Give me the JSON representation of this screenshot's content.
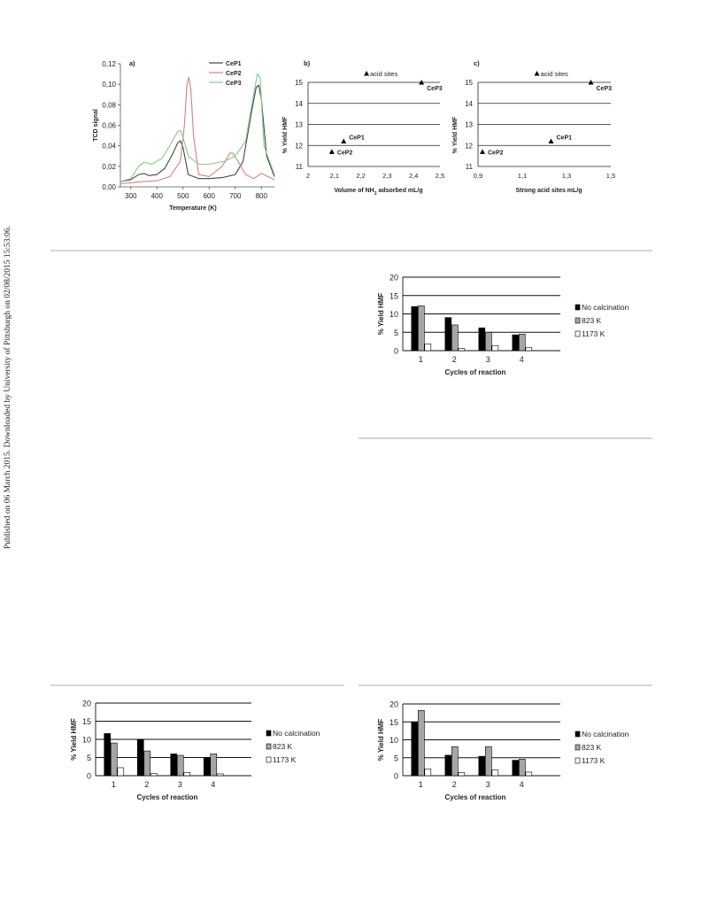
{
  "side_note": "Published on 06 March 2015. Downloaded by University of Pittsburgh on 02/08/2015 15:53:06.",
  "chart_data": [
    {
      "panel": "a)",
      "type": "line",
      "xlabel": "Temperature (K)",
      "ylabel": "TCD signal",
      "xlim": [
        260,
        850
      ],
      "ylim": [
        0,
        0.12
      ],
      "xticks": [
        "300",
        "400",
        "500",
        "600",
        "700",
        "800"
      ],
      "xtick_values": [
        300,
        400,
        500,
        600,
        700,
        800
      ],
      "yticks": [
        "0,00",
        "0,02",
        "0,04",
        "0,06",
        "0,08",
        "0,10",
        "0,12"
      ],
      "ytick_values": [
        0,
        0.02,
        0.04,
        0.06,
        0.08,
        0.1,
        0.12
      ],
      "legend": [
        "CeP1",
        "CeP2",
        "CeP3"
      ],
      "colors": [
        "#444444",
        "#d98080",
        "#86c986"
      ],
      "series": [
        {
          "name": "CeP1",
          "x": [
            260,
            300,
            330,
            350,
            370,
            400,
            430,
            460,
            480,
            490,
            500,
            520,
            560,
            600,
            650,
            700,
            730,
            760,
            780,
            790,
            800,
            820,
            850
          ],
          "y": [
            0.005,
            0.007,
            0.012,
            0.013,
            0.011,
            0.012,
            0.018,
            0.032,
            0.043,
            0.045,
            0.038,
            0.012,
            0.008,
            0.008,
            0.009,
            0.012,
            0.025,
            0.07,
            0.097,
            0.099,
            0.085,
            0.03,
            0.01
          ]
        },
        {
          "name": "CeP2",
          "x": [
            260,
            300,
            340,
            400,
            450,
            490,
            505,
            515,
            522,
            530,
            540,
            560,
            600,
            650,
            680,
            690,
            710,
            740,
            770,
            800,
            850
          ],
          "y": [
            0.003,
            0.004,
            0.005,
            0.006,
            0.01,
            0.025,
            0.06,
            0.1,
            0.107,
            0.095,
            0.05,
            0.012,
            0.01,
            0.02,
            0.033,
            0.033,
            0.025,
            0.012,
            0.008,
            0.013,
            0.007
          ]
        },
        {
          "name": "CeP3",
          "x": [
            260,
            300,
            330,
            350,
            380,
            420,
            460,
            480,
            490,
            500,
            520,
            560,
            600,
            660,
            700,
            740,
            770,
            785,
            795,
            810,
            850
          ],
          "y": [
            0.005,
            0.008,
            0.02,
            0.024,
            0.022,
            0.028,
            0.045,
            0.054,
            0.055,
            0.048,
            0.03,
            0.022,
            0.022,
            0.025,
            0.03,
            0.045,
            0.09,
            0.11,
            0.107,
            0.04,
            0.012
          ]
        }
      ]
    },
    {
      "panel": "b)",
      "type": "scatter",
      "xlabel": "Volume of NH₃ adsorbed mL/g",
      "ylabel": "% Yield HMF",
      "xlim": [
        2,
        2.5
      ],
      "ylim": [
        11,
        15
      ],
      "xticks": [
        "2",
        "2,1",
        "2,2",
        "2,3",
        "2,4",
        "2,5"
      ],
      "xtick_values": [
        2,
        2.1,
        2.2,
        2.3,
        2.4,
        2.5
      ],
      "yticks": [
        "11",
        "12",
        "13",
        "14",
        "15"
      ],
      "ytick_values": [
        11,
        12,
        13,
        14,
        15
      ],
      "legend": [
        "acid sites"
      ],
      "points": [
        {
          "label": "CeP1",
          "x": 2.135,
          "y": 12.2
        },
        {
          "label": "CeP2",
          "x": 2.09,
          "y": 11.7
        },
        {
          "label": "CeP3",
          "x": 2.43,
          "y": 15.0
        }
      ]
    },
    {
      "panel": "c)",
      "type": "scatter",
      "xlabel": "Strong acid sites mL/g",
      "ylabel": "% Yield HMF",
      "xlim": [
        0.9,
        1.5
      ],
      "ylim": [
        11,
        15
      ],
      "xticks": [
        "0,9",
        "1,1",
        "1,3",
        "1,5"
      ],
      "xtick_values": [
        0.9,
        1.1,
        1.3,
        1.5
      ],
      "yticks": [
        "11",
        "12",
        "13",
        "14",
        "15"
      ],
      "ytick_values": [
        11,
        12,
        13,
        14,
        15
      ],
      "legend": [
        "acid sites"
      ],
      "points": [
        {
          "label": "CeP1",
          "x": 1.23,
          "y": 12.2
        },
        {
          "label": "CeP2",
          "x": 0.92,
          "y": 11.7
        },
        {
          "label": "CeP3",
          "x": 1.41,
          "y": 15.0
        }
      ]
    },
    {
      "type": "bar",
      "xlabel": "Cycles of reaction",
      "ylabel": "% Yield HMF",
      "ylim": [
        0,
        20
      ],
      "yticks": [
        "0",
        "5",
        "10",
        "15",
        "20"
      ],
      "ytick_values": [
        0,
        5,
        10,
        15,
        20
      ],
      "categories": [
        "1",
        "2",
        "3",
        "4"
      ],
      "series": [
        {
          "name": "No calcination",
          "color": "#000000",
          "values": [
            12,
            9,
            6.2,
            4.3
          ]
        },
        {
          "name": "823 K",
          "color": "#a6a6a6",
          "values": [
            12.2,
            7,
            5,
            4.5
          ]
        },
        {
          "name": "1173 K",
          "color": "#ffffff",
          "values": [
            1.8,
            0.6,
            1.4,
            0.8
          ]
        }
      ]
    },
    {
      "type": "bar",
      "xlabel": "Cycles of reaction",
      "ylabel": "% Yield HMF",
      "ylim": [
        0,
        20
      ],
      "yticks": [
        "0",
        "5",
        "10",
        "15",
        "20"
      ],
      "ytick_values": [
        0,
        5,
        10,
        15,
        20
      ],
      "categories": [
        "1",
        "2",
        "3",
        "4"
      ],
      "series": [
        {
          "name": "No calcination",
          "color": "#000000",
          "values": [
            11.6,
            10,
            6,
            4.9
          ]
        },
        {
          "name": "823 K",
          "color": "#a6a6a6",
          "values": [
            9,
            6.8,
            5.6,
            6
          ]
        },
        {
          "name": "1173 K",
          "color": "#ffffff",
          "values": [
            2.2,
            0.6,
            0.9,
            0.5
          ]
        }
      ]
    },
    {
      "type": "bar",
      "xlabel": "Cycles of reaction",
      "ylabel": "% Yield HMF",
      "ylim": [
        0,
        20
      ],
      "yticks": [
        "0",
        "5",
        "10",
        "15",
        "20"
      ],
      "ytick_values": [
        0,
        5,
        10,
        15,
        20
      ],
      "categories": [
        "1",
        "2",
        "3",
        "4"
      ],
      "series": [
        {
          "name": "No calcination",
          "color": "#000000",
          "values": [
            15,
            5.7,
            5.4,
            4.3
          ]
        },
        {
          "name": "823 K",
          "color": "#a6a6a6",
          "values": [
            18.2,
            8.1,
            8.1,
            4.6
          ]
        },
        {
          "name": "1173 K",
          "color": "#ffffff",
          "values": [
            1.9,
            0.9,
            1.6,
            1
          ]
        }
      ]
    }
  ]
}
